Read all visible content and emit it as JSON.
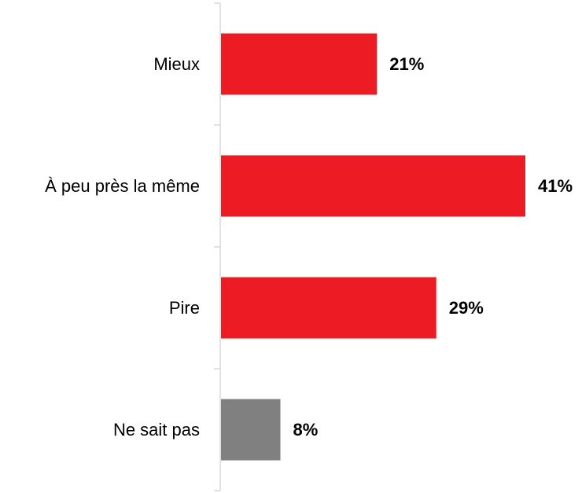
{
  "chart_data": {
    "type": "bar",
    "orientation": "horizontal",
    "categories": [
      "Mieux",
      "À peu près la même",
      "Pire",
      "Ne sait pas"
    ],
    "values": [
      21,
      41,
      29,
      8
    ],
    "value_labels": [
      "21%",
      "41%",
      "29%",
      "8%"
    ],
    "colors": [
      "#ed1c24",
      "#ed1c24",
      "#ed1c24",
      "#808080"
    ],
    "xlim": [
      0,
      41
    ],
    "grid": false,
    "legend": "none"
  }
}
